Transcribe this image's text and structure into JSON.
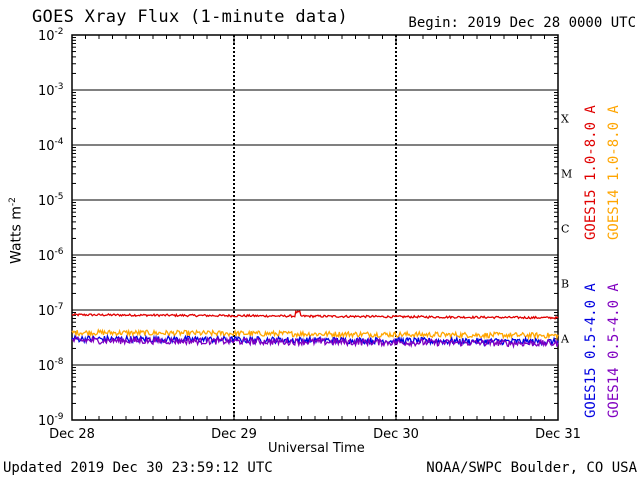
{
  "header": {
    "title": "GOES Xray Flux (1-minute data)",
    "begin_label": "Begin:",
    "begin_value": "2019 Dec 28 0000 UTC"
  },
  "footer": {
    "updated": "Updated 2019 Dec 30 23:59:12 UTC",
    "credit": "NOAA/SWPC Boulder, CO USA"
  },
  "chart_data": {
    "type": "line",
    "title": "GOES Xray Flux (1-minute data)",
    "xlabel": "Universal Time",
    "ylabel": "Watts m-2",
    "yscale": "log",
    "ylim": [
      1e-09,
      0.01
    ],
    "x_ticks": [
      "Dec 28",
      "Dec 29",
      "Dec 30",
      "Dec 31"
    ],
    "y_ticks": [
      {
        "base": "10",
        "exp": "-9"
      },
      {
        "base": "10",
        "exp": "-8"
      },
      {
        "base": "10",
        "exp": "-7"
      },
      {
        "base": "10",
        "exp": "-6"
      },
      {
        "base": "10",
        "exp": "-5"
      },
      {
        "base": "10",
        "exp": "-4"
      },
      {
        "base": "10",
        "exp": "-3"
      },
      {
        "base": "10",
        "exp": "-2"
      }
    ],
    "flare_classes": [
      "A",
      "B",
      "C",
      "M",
      "X"
    ],
    "grid": true,
    "series": [
      {
        "name": "GOES15 1.0-8.0 A",
        "color": "#e00000",
        "level": 8.2e-08,
        "noise": 0.02
      },
      {
        "name": "GOES14 1.0-8.0 A",
        "color": "#ffa500",
        "level": 3.9e-08,
        "noise": 0.05
      },
      {
        "name": "GOES15 0.5-4.0 A",
        "color": "#0000e0",
        "level": 3e-08,
        "noise": 0.06
      },
      {
        "name": "GOES14 0.5-4.0 A",
        "color": "#8000c0",
        "level": 2.8e-08,
        "noise": 0.06
      }
    ]
  }
}
